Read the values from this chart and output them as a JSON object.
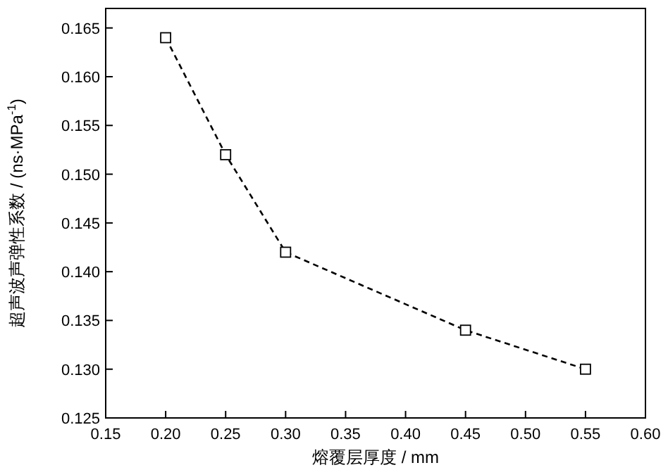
{
  "chart_data": {
    "type": "line",
    "xlabel": "熔覆层厚度 / mm",
    "ylabel": "超声波声弹性系数 / (ns·MPa$^{-1}$)",
    "x": [
      0.2,
      0.25,
      0.3,
      0.45,
      0.55
    ],
    "values": [
      0.164,
      0.152,
      0.142,
      0.134,
      0.13
    ],
    "color": "#000000",
    "marker": "square",
    "line_style": "dashed",
    "xlim": [
      0.15,
      0.6
    ],
    "ylim": [
      0.125,
      0.167
    ],
    "xticks": [
      {
        "value": 0.15,
        "label": "0.15"
      },
      {
        "value": 0.2,
        "label": "0.20"
      },
      {
        "value": 0.25,
        "label": "0.25"
      },
      {
        "value": 0.3,
        "label": "0.30"
      },
      {
        "value": 0.35,
        "label": "0.35"
      },
      {
        "value": 0.4,
        "label": "0.40"
      },
      {
        "value": 0.45,
        "label": "0.45"
      },
      {
        "value": 0.5,
        "label": "0.50"
      },
      {
        "value": 0.55,
        "label": "0.55"
      },
      {
        "value": 0.6,
        "label": "0.60"
      }
    ],
    "yticks": [
      {
        "value": 0.125,
        "label": "0.125"
      },
      {
        "value": 0.13,
        "label": "0.130"
      },
      {
        "value": 0.135,
        "label": "0.135"
      },
      {
        "value": 0.14,
        "label": "0.140"
      },
      {
        "value": 0.145,
        "label": "0.145"
      },
      {
        "value": 0.15,
        "label": "0.150"
      },
      {
        "value": 0.155,
        "label": "0.155"
      },
      {
        "value": 0.16,
        "label": "0.160"
      },
      {
        "value": 0.165,
        "label": "0.165"
      }
    ]
  }
}
